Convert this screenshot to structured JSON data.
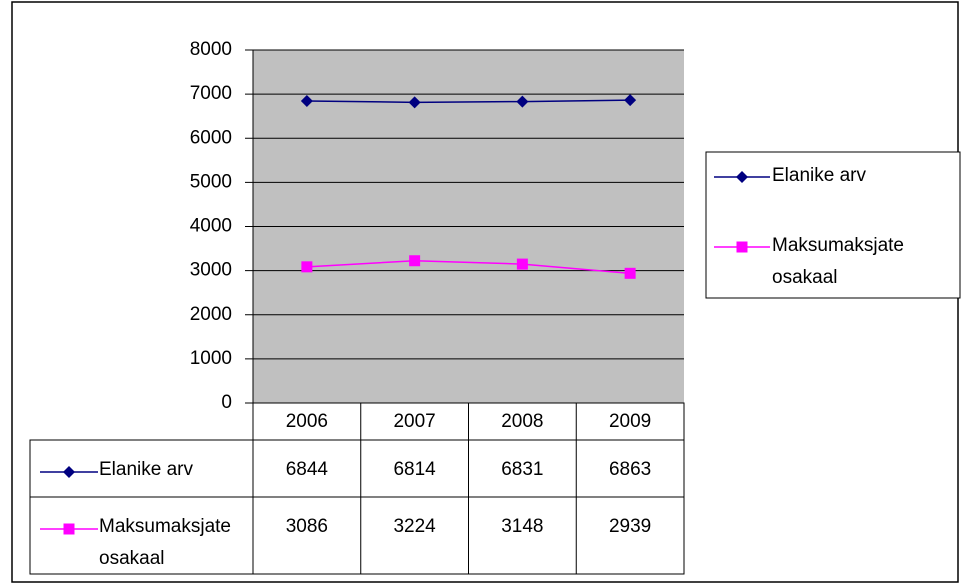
{
  "chart_data": {
    "type": "line",
    "categories": [
      "2006",
      "2007",
      "2008",
      "2009"
    ],
    "series": [
      {
        "name": "Elanike arv",
        "color": "#000080",
        "marker": "diamond",
        "values": [
          6844,
          6814,
          6831,
          6863
        ]
      },
      {
        "name": "Maksumaksjate osakaal",
        "color": "#ff00ff",
        "marker": "square",
        "values": [
          3086,
          3224,
          3148,
          2939
        ]
      }
    ],
    "ylim": [
      0,
      8000
    ],
    "yticks": [
      0,
      1000,
      2000,
      3000,
      4000,
      5000,
      6000,
      7000,
      8000
    ],
    "grid": true,
    "plot_background": "#c0c0c0",
    "legend": "right",
    "data_table": true
  }
}
